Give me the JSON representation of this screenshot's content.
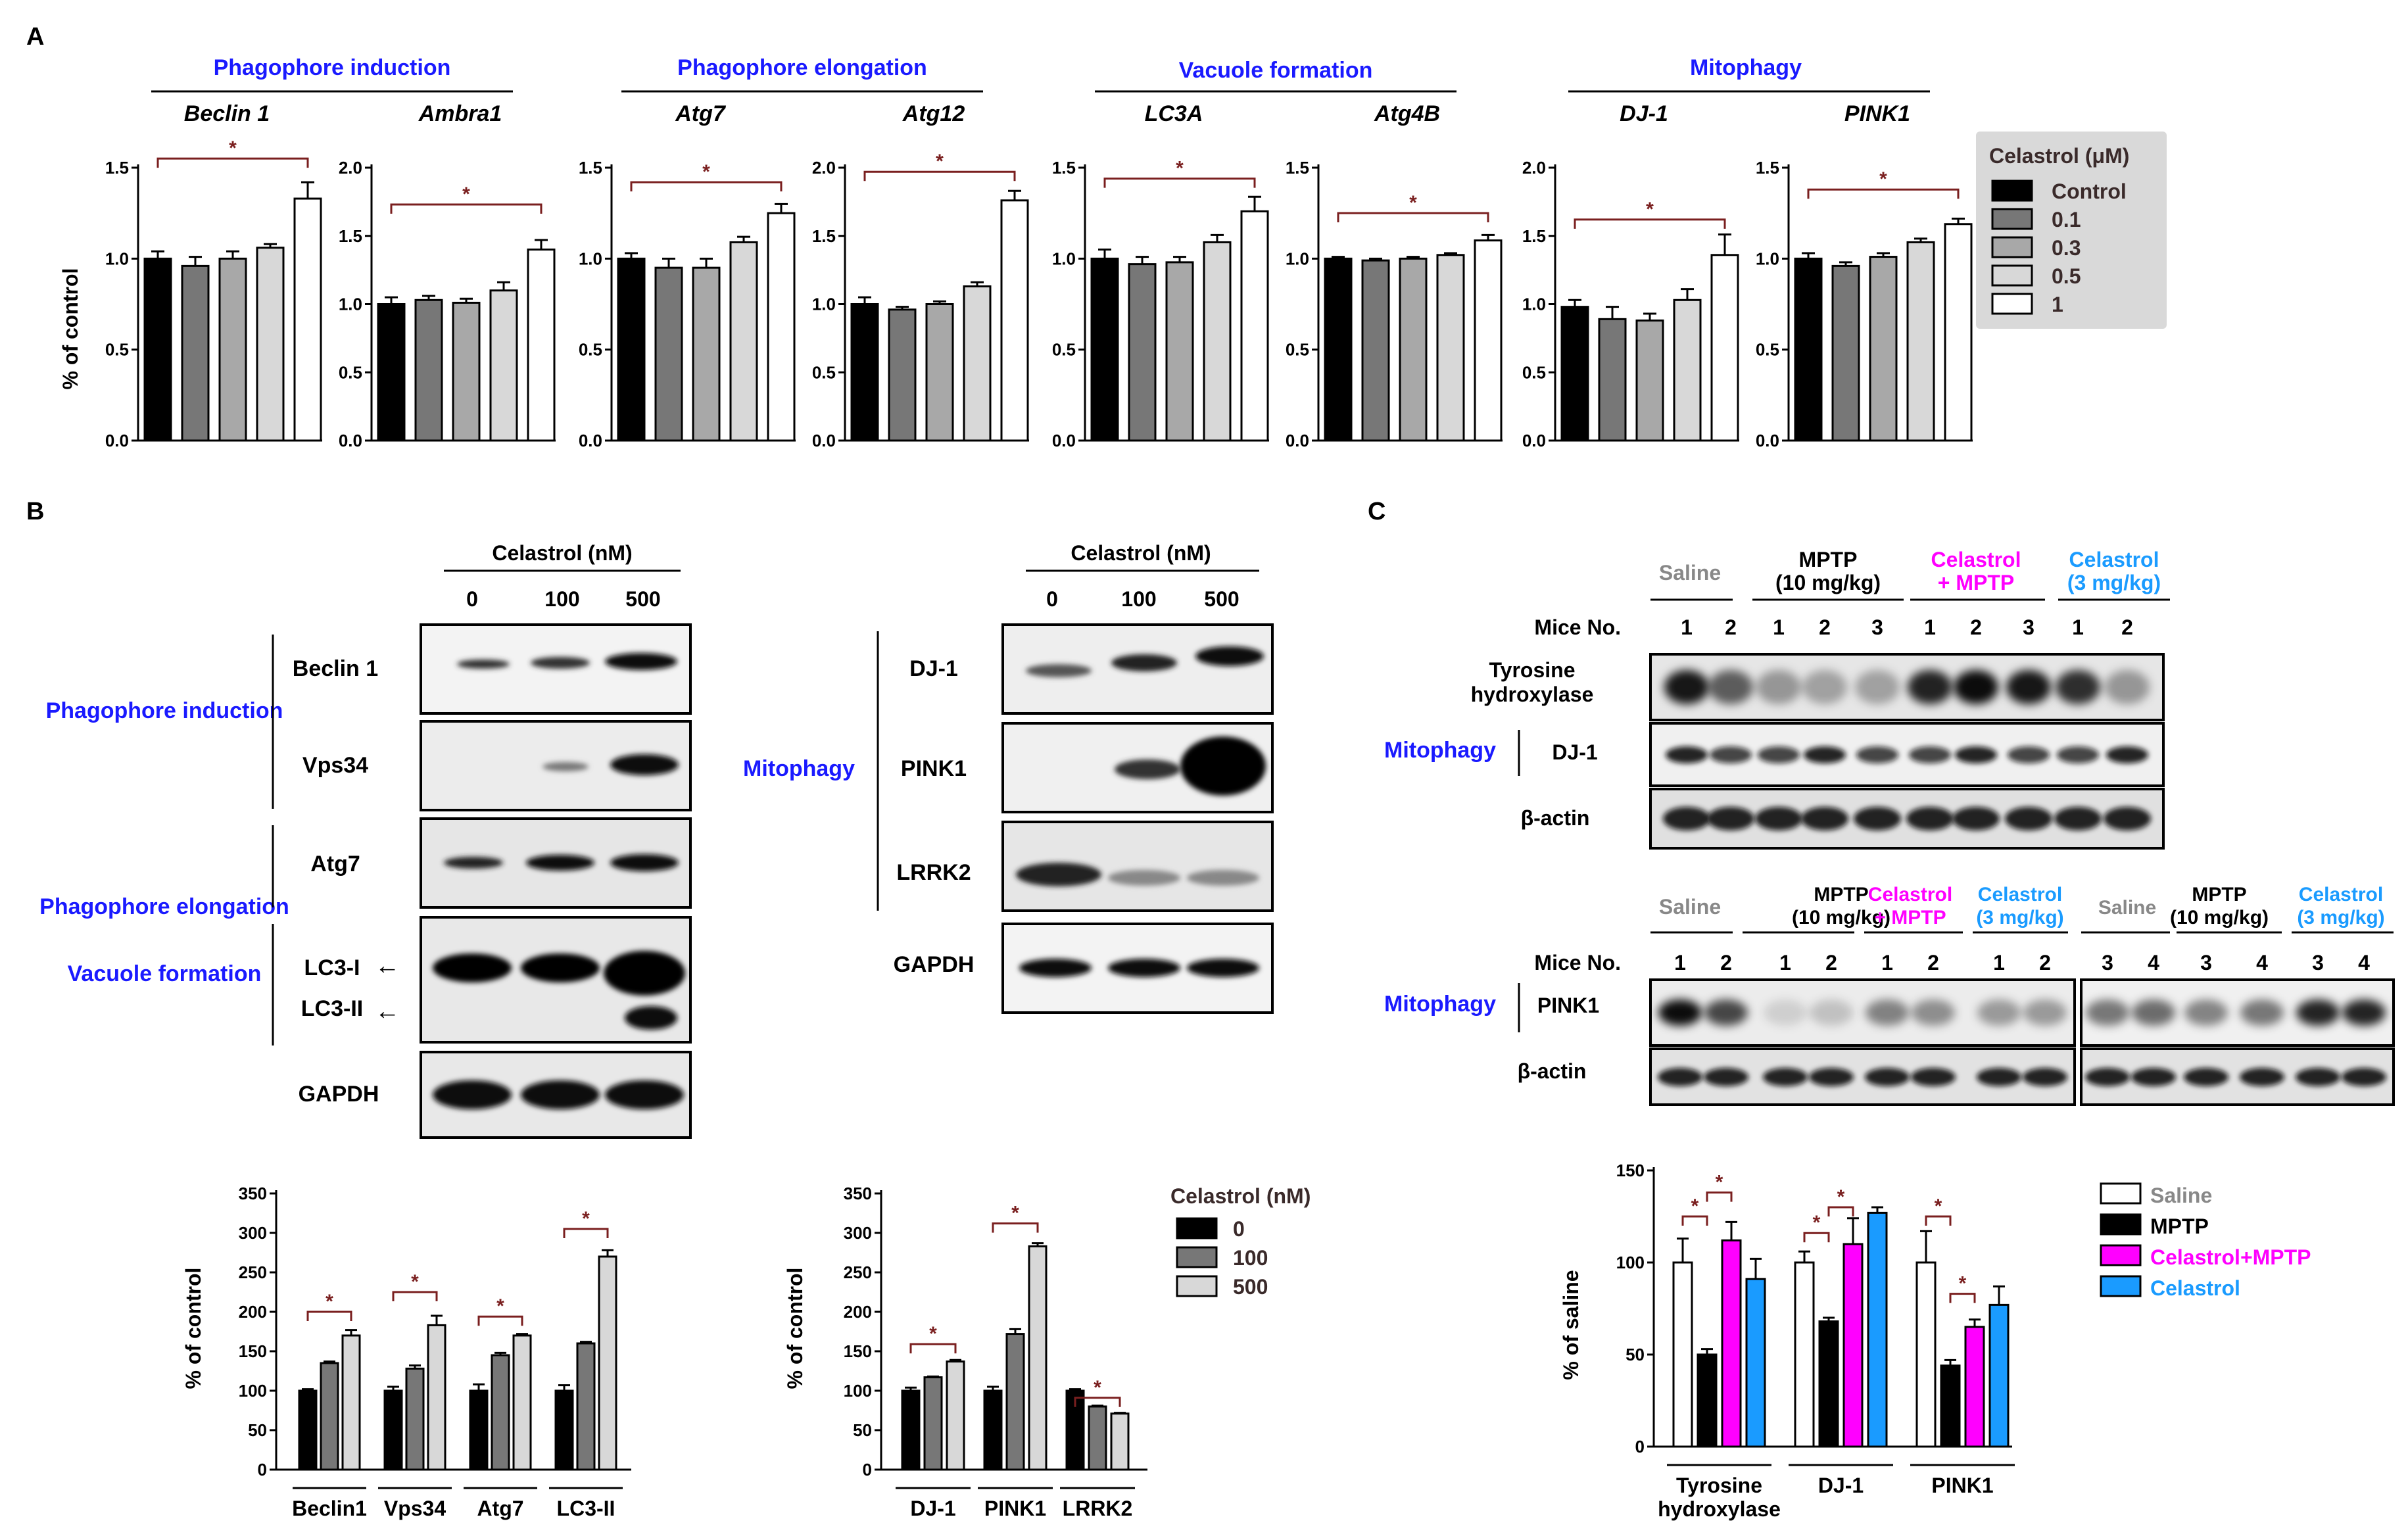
{
  "panels": {
    "a": "A",
    "b": "B",
    "c": "C"
  },
  "colors": {
    "blue": "#1a1aff",
    "magenta": "#ff00ff",
    "cyan": "#1a9bff",
    "gray_text": "#888888",
    "bracket": "#7a1f1f"
  },
  "panelA": {
    "groups": [
      {
        "title": "Phagophore induction"
      },
      {
        "title": "Phagophore elongation"
      },
      {
        "title": "Vacuole formation"
      },
      {
        "title": "Mitophagy"
      }
    ],
    "ylabel": "% of control",
    "star": "*",
    "legend": {
      "title": "Celastrol (μM)",
      "items": [
        "Control",
        "0.1",
        "0.3",
        "0.5",
        "1"
      ],
      "fills": [
        "#000000",
        "#777777",
        "#a8a8a8",
        "#d8d8d8",
        "#ffffff"
      ]
    }
  },
  "panelB": {
    "blot1": {
      "header": "Celastrol (nM)",
      "doses": [
        "0",
        "100",
        "500"
      ],
      "proteins": [
        "Beclin 1",
        "Vps34",
        "Atg7",
        "LC3-I",
        "LC3-II",
        "GAPDH"
      ],
      "categories": [
        "Phagophore induction",
        "Phagophore elongation",
        "Vacuole formation"
      ]
    },
    "blot2": {
      "header": "Celastrol (nM)",
      "doses": [
        "0",
        "100",
        "500"
      ],
      "proteins": [
        "DJ-1",
        "PINK1",
        "LRRK2",
        "GAPDH"
      ],
      "category": "Mitophagy"
    },
    "arrow": "←",
    "ylabel": "% of control",
    "star": "*",
    "legend": {
      "title": "Celastrol (nM)",
      "items": [
        "0",
        "100",
        "500"
      ],
      "fills": [
        "#000000",
        "#777777",
        "#d8d8d8"
      ]
    }
  },
  "panelC": {
    "blot1": {
      "groups": [
        {
          "line1": "Saline",
          "line2": ""
        },
        {
          "line1": "MPTP",
          "line2": "(10 mg/kg)"
        },
        {
          "line1": "Celastrol",
          "line2": "+ MPTP"
        },
        {
          "line1": "Celastrol",
          "line2": "(3 mg/kg)"
        }
      ],
      "mice_label": "Mice No.",
      "mice": [
        "1",
        "2",
        "1",
        "2",
        "3",
        "1",
        "2",
        "3",
        "1",
        "2"
      ],
      "rows": [
        {
          "line1": "Tyrosine",
          "line2": "hydroxylase"
        },
        {
          "line1": "DJ-1",
          "line2": ""
        },
        {
          "line1": "β-actin",
          "line2": ""
        }
      ],
      "category": "Mitophagy"
    },
    "blot2": {
      "groups": [
        {
          "line1": "Saline",
          "line2": ""
        },
        {
          "line1": "MPTP",
          "line2": "(10 mg/kg)"
        },
        {
          "line1": "Celastrol",
          "line2": "+ MPTP"
        },
        {
          "line1": "Celastrol",
          "line2": "(3 mg/kg)"
        },
        {
          "line1": "Saline",
          "line2": ""
        },
        {
          "line1": "MPTP",
          "line2": "(10 mg/kg)"
        },
        {
          "line1": "Celastrol",
          "line2": "(3 mg/kg)"
        }
      ],
      "mice_label": "Mice No.",
      "mice": [
        "1",
        "2",
        "1",
        "2",
        "1",
        "2",
        "1",
        "2",
        "3",
        "4",
        "3",
        "4",
        "3",
        "4"
      ],
      "rows": [
        "PINK1",
        "β-actin"
      ],
      "category": "Mitophagy"
    },
    "ylabel": "% of saline",
    "star": "*",
    "legend": {
      "items": [
        "Saline",
        "MPTP",
        "Celastrol+MPTP",
        "Celastrol"
      ],
      "fills": [
        "#ffffff",
        "#000000",
        "#ff00ff",
        "#1a9bff"
      ]
    }
  },
  "chart_data": [
    {
      "id": "A_Beclin1",
      "type": "bar",
      "title": "Beclin 1",
      "ylabel": "% of control",
      "ylim": [
        0,
        1.5
      ],
      "yticks": [
        0.0,
        0.5,
        1.0,
        1.5
      ],
      "yticklabels": [
        "0.0",
        "0.5",
        "1.0",
        "1.5"
      ],
      "categories": [
        "Control",
        "0.1",
        "0.3",
        "0.5",
        "1"
      ],
      "values": [
        1.0,
        0.96,
        1.0,
        1.06,
        1.33
      ],
      "errors": [
        0.04,
        0.05,
        0.04,
        0.02,
        0.09
      ],
      "brackets": [
        {
          "from": 0,
          "to": 4,
          "y": 1.55,
          "label": "*"
        }
      ]
    },
    {
      "id": "A_Ambra1",
      "type": "bar",
      "title": "Ambra1",
      "ylim": [
        0,
        2.0
      ],
      "yticks": [
        0.0,
        0.5,
        1.0,
        1.5,
        2.0
      ],
      "yticklabels": [
        "0.0",
        "0.5",
        "1.0",
        "1.5",
        "2.0"
      ],
      "categories": [
        "Control",
        "0.1",
        "0.3",
        "0.5",
        "1"
      ],
      "values": [
        1.0,
        1.03,
        1.01,
        1.1,
        1.4
      ],
      "errors": [
        0.05,
        0.03,
        0.03,
        0.06,
        0.07
      ],
      "brackets": [
        {
          "from": 0,
          "to": 4,
          "y": 1.73,
          "label": "*"
        }
      ]
    },
    {
      "id": "A_Atg7",
      "type": "bar",
      "title": "Atg7",
      "ylim": [
        0,
        1.5
      ],
      "yticks": [
        0.0,
        0.5,
        1.0,
        1.5
      ],
      "yticklabels": [
        "0.0",
        "0.5",
        "1.0",
        "1.5"
      ],
      "categories": [
        "Control",
        "0.1",
        "0.3",
        "0.5",
        "1"
      ],
      "values": [
        1.0,
        0.95,
        0.95,
        1.09,
        1.25
      ],
      "errors": [
        0.03,
        0.05,
        0.05,
        0.03,
        0.05
      ],
      "brackets": [
        {
          "from": 0,
          "to": 4,
          "y": 1.42,
          "label": "*"
        }
      ]
    },
    {
      "id": "A_Atg12",
      "type": "bar",
      "title": "Atg12",
      "ylim": [
        0,
        2.0
      ],
      "yticks": [
        0.0,
        0.5,
        1.0,
        1.5,
        2.0
      ],
      "yticklabels": [
        "0.0",
        "0.5",
        "1.0",
        "1.5",
        "2.0"
      ],
      "categories": [
        "Control",
        "0.1",
        "0.3",
        "0.5",
        "1"
      ],
      "values": [
        1.0,
        0.96,
        1.0,
        1.13,
        1.76
      ],
      "errors": [
        0.05,
        0.02,
        0.02,
        0.03,
        0.07
      ],
      "brackets": [
        {
          "from": 0,
          "to": 4,
          "y": 1.97,
          "label": "*"
        }
      ]
    },
    {
      "id": "A_LC3A",
      "type": "bar",
      "title": "LC3A",
      "ylim": [
        0,
        1.5
      ],
      "yticks": [
        0.0,
        0.5,
        1.0,
        1.5
      ],
      "yticklabels": [
        "0.0",
        "0.5",
        "1.0",
        "1.5"
      ],
      "categories": [
        "Control",
        "0.1",
        "0.3",
        "0.5",
        "1"
      ],
      "values": [
        1.0,
        0.97,
        0.98,
        1.09,
        1.26
      ],
      "errors": [
        0.05,
        0.04,
        0.03,
        0.04,
        0.08
      ],
      "brackets": [
        {
          "from": 0,
          "to": 4,
          "y": 1.44,
          "label": "*"
        }
      ]
    },
    {
      "id": "A_Atg4B",
      "type": "bar",
      "title": "Atg4B",
      "ylim": [
        0,
        1.5
      ],
      "yticks": [
        0.0,
        0.5,
        1.0,
        1.5
      ],
      "yticklabels": [
        "0.0",
        "0.5",
        "1.0",
        "1.5"
      ],
      "categories": [
        "Control",
        "0.1",
        "0.3",
        "0.5",
        "1"
      ],
      "values": [
        1.0,
        0.99,
        1.0,
        1.02,
        1.1
      ],
      "errors": [
        0.01,
        0.01,
        0.01,
        0.01,
        0.03
      ],
      "brackets": [
        {
          "from": 0,
          "to": 4,
          "y": 1.25,
          "label": "*"
        }
      ]
    },
    {
      "id": "A_DJ1",
      "type": "bar",
      "title": "DJ-1",
      "ylim": [
        0,
        2.0
      ],
      "yticks": [
        0.0,
        0.5,
        1.0,
        1.5,
        2.0
      ],
      "yticklabels": [
        "0.0",
        "0.5",
        "1.0",
        "1.5",
        "2.0"
      ],
      "categories": [
        "Control",
        "0.1",
        "0.3",
        "0.5",
        "1"
      ],
      "values": [
        0.98,
        0.89,
        0.88,
        1.03,
        1.36
      ],
      "errors": [
        0.05,
        0.09,
        0.05,
        0.08,
        0.15
      ],
      "brackets": [
        {
          "from": 0,
          "to": 4,
          "y": 1.62,
          "label": "*"
        }
      ]
    },
    {
      "id": "A_PINK1",
      "type": "bar",
      "title": "PINK1",
      "ylim": [
        0,
        1.5
      ],
      "yticks": [
        0.0,
        0.5,
        1.0,
        1.5
      ],
      "yticklabels": [
        "0.0",
        "0.5",
        "1.0",
        "1.5"
      ],
      "categories": [
        "Control",
        "0.1",
        "0.3",
        "0.5",
        "1"
      ],
      "values": [
        1.0,
        0.96,
        1.01,
        1.09,
        1.19
      ],
      "errors": [
        0.03,
        0.02,
        0.02,
        0.02,
        0.03
      ],
      "brackets": [
        {
          "from": 0,
          "to": 4,
          "y": 1.38,
          "label": "*"
        }
      ]
    },
    {
      "id": "B_left",
      "type": "bar",
      "ylabel": "% of control",
      "ylim": [
        0,
        350
      ],
      "yticks": [
        0,
        50,
        100,
        150,
        200,
        250,
        300,
        350
      ],
      "yticklabels": [
        "0",
        "50",
        "100",
        "150",
        "200",
        "250",
        "300",
        "350"
      ],
      "categories": [
        "Beclin1",
        "Vps34",
        "Atg7",
        "LC3-II"
      ],
      "series": [
        {
          "name": "0",
          "values": [
            100,
            100,
            100,
            100
          ],
          "errors": [
            2,
            5,
            8,
            7
          ]
        },
        {
          "name": "100",
          "values": [
            135,
            128,
            145,
            160
          ],
          "errors": [
            2,
            4,
            3,
            2
          ]
        },
        {
          "name": "500",
          "values": [
            170,
            183,
            170,
            270
          ],
          "errors": [
            7,
            12,
            2,
            8
          ]
        }
      ],
      "brackets": [
        {
          "group": 0,
          "y": 200,
          "label": "*"
        },
        {
          "group": 1,
          "y": 225,
          "label": "*"
        },
        {
          "group": 2,
          "y": 194,
          "label": "*"
        },
        {
          "group": 3,
          "y": 305,
          "label": "*"
        }
      ]
    },
    {
      "id": "B_right",
      "type": "bar",
      "ylabel": "% of control",
      "ylim": [
        0,
        350
      ],
      "yticks": [
        0,
        50,
        100,
        150,
        200,
        250,
        300,
        350
      ],
      "yticklabels": [
        "0",
        "50",
        "100",
        "150",
        "200",
        "250",
        "300",
        "350"
      ],
      "categories": [
        "DJ-1",
        "PINK1",
        "LRRK2"
      ],
      "series": [
        {
          "name": "0",
          "values": [
            100,
            100,
            100
          ],
          "errors": [
            4,
            5,
            2
          ]
        },
        {
          "name": "100",
          "values": [
            117,
            172,
            80
          ],
          "errors": [
            1,
            6,
            1
          ]
        },
        {
          "name": "500",
          "values": [
            137,
            283,
            71
          ],
          "errors": [
            2,
            4,
            1
          ]
        }
      ],
      "brackets": [
        {
          "group": 0,
          "y": 159,
          "label": "*"
        },
        {
          "group": 1,
          "y": 312,
          "label": "*"
        },
        {
          "group": 2,
          "y": 91,
          "label": "*"
        }
      ]
    },
    {
      "id": "C_chart",
      "type": "bar",
      "ylabel": "% of saline",
      "ylim": [
        0,
        150
      ],
      "yticks": [
        0,
        50,
        100,
        150
      ],
      "yticklabels": [
        "0",
        "50",
        "100",
        "150"
      ],
      "categories": [
        "Tyrosine hydroxylase",
        "DJ-1",
        "PINK1"
      ],
      "series": [
        {
          "name": "Saline",
          "values": [
            100,
            100,
            100
          ],
          "errors": [
            13,
            6,
            17
          ]
        },
        {
          "name": "MPTP",
          "values": [
            50,
            68,
            44
          ],
          "errors": [
            3,
            2,
            3
          ]
        },
        {
          "name": "Celastrol+MPTP",
          "values": [
            112,
            110,
            65
          ],
          "errors": [
            10,
            14,
            4
          ]
        },
        {
          "name": "Celastrol",
          "values": [
            91,
            127,
            77
          ],
          "errors": [
            11,
            3,
            10
          ]
        }
      ],
      "brackets": [
        {
          "group": 0,
          "from": 0,
          "to": 1,
          "y": 125,
          "label": "*"
        },
        {
          "group": 0,
          "from": 1,
          "to": 2,
          "y": 138,
          "label": "*"
        },
        {
          "group": 1,
          "from": 0,
          "to": 1,
          "y": 116,
          "label": "*"
        },
        {
          "group": 1,
          "from": 1,
          "to": 2,
          "y": 130,
          "label": "*"
        },
        {
          "group": 2,
          "from": 0,
          "to": 1,
          "y": 125,
          "label": "*"
        },
        {
          "group": 2,
          "from": 1,
          "to": 2,
          "y": 83,
          "label": "*"
        }
      ]
    }
  ]
}
